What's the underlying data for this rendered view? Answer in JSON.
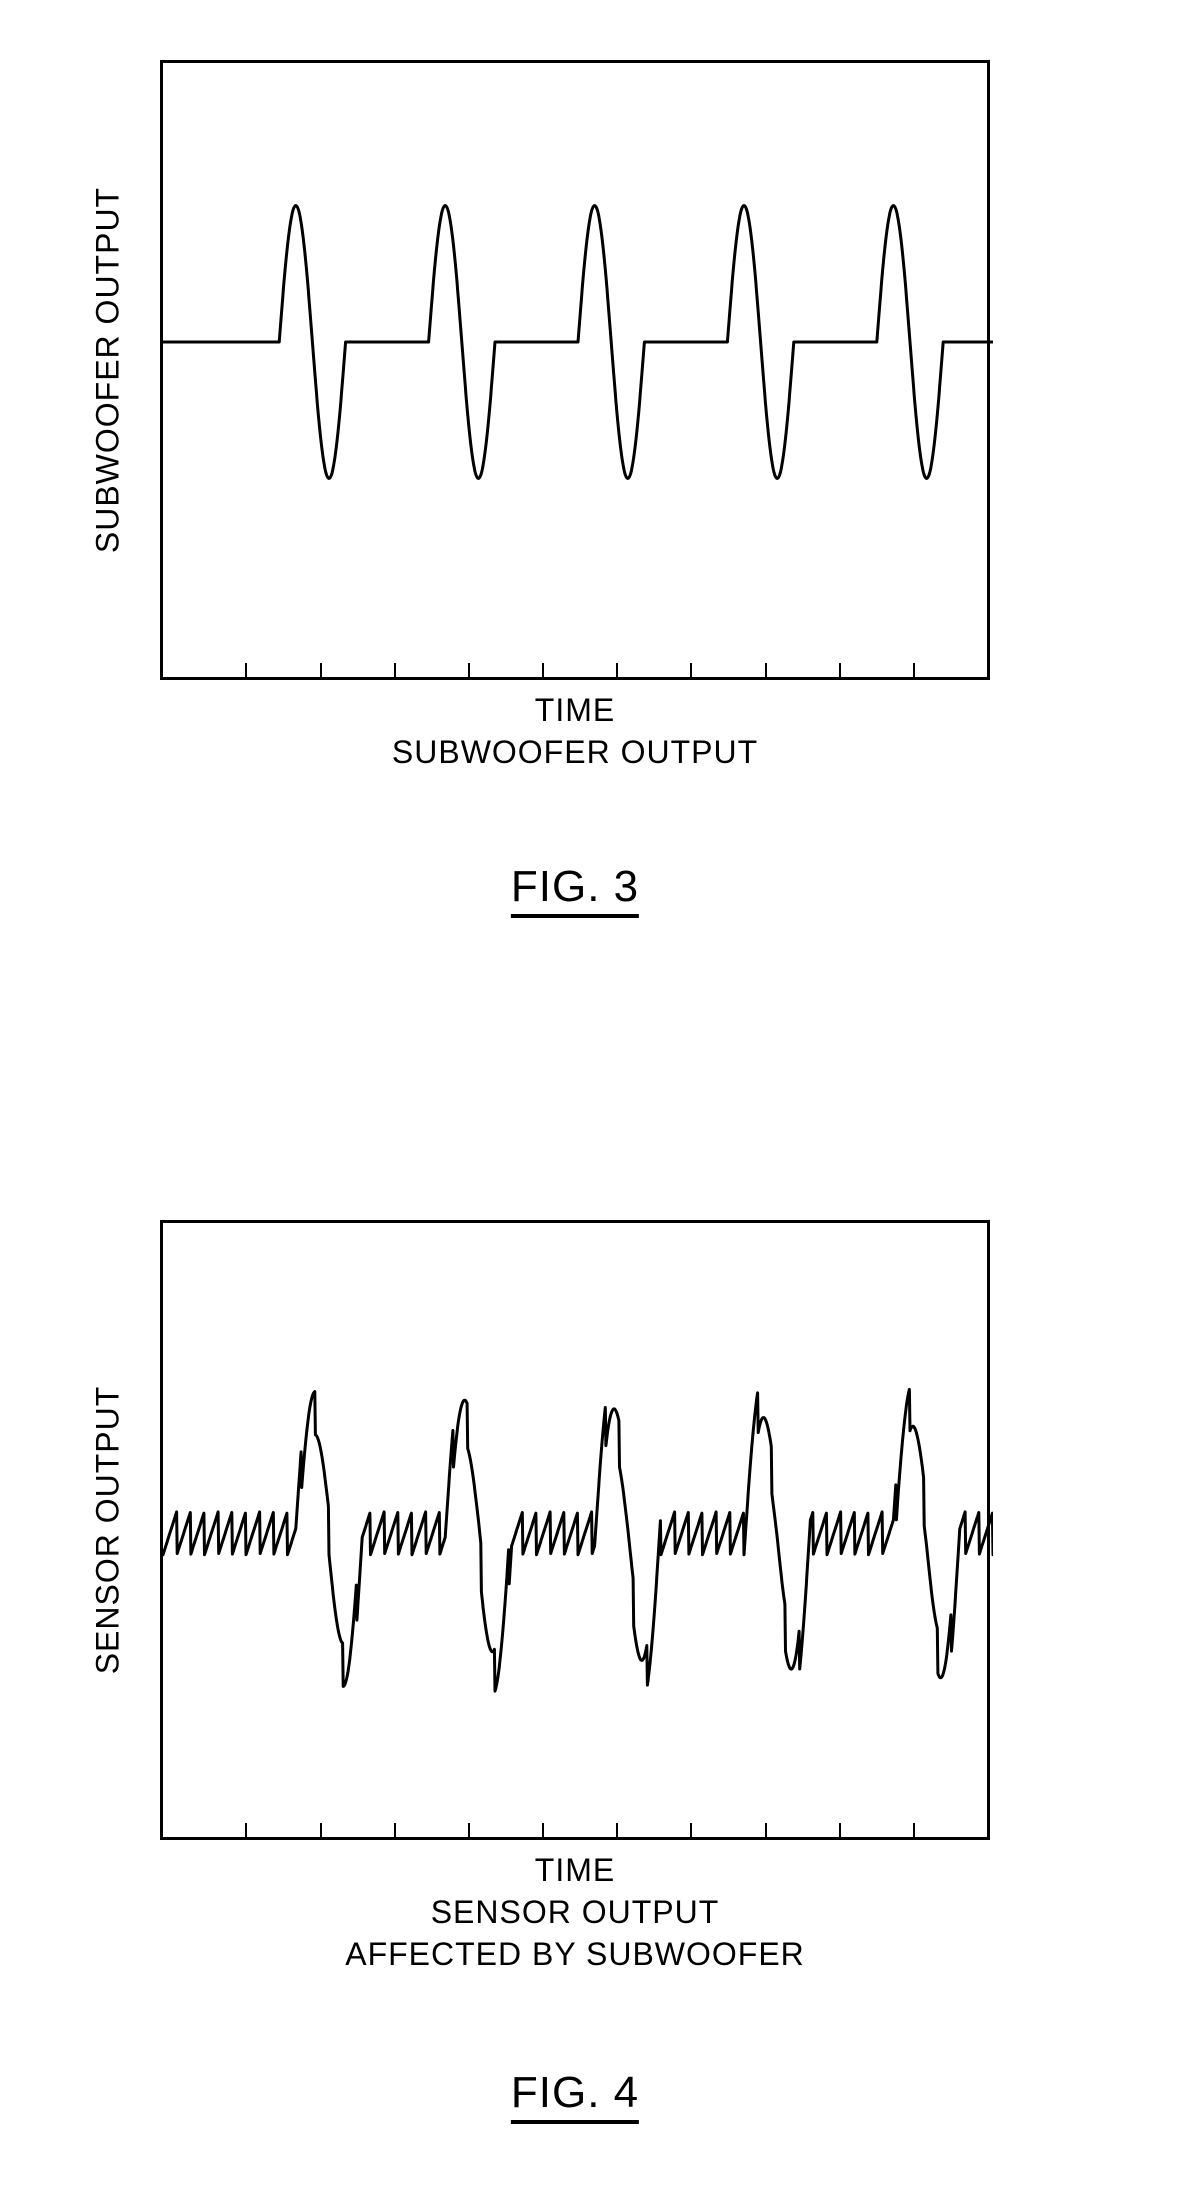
{
  "panel1": {
    "type": "line",
    "ylabel": "SUBWOOFER OUTPUT",
    "xlabel": "TIME",
    "sublabel1": "SUBWOOFER OUTPUT",
    "figlabel": "FIG. 3",
    "stroke_color": "#000000",
    "stroke_width": 3,
    "background_color": "#ffffff",
    "border_color": "#000000",
    "ylim": [
      -1,
      1
    ],
    "baseline_y": 0.45,
    "pulse_amp_up": 0.22,
    "pulse_amp_down": 0.22,
    "n_pulses": 5,
    "pulse_centers": [
      0.16,
      0.34,
      0.52,
      0.7,
      0.88
    ],
    "pulse_half_width": 0.02,
    "tick_positions": [
      0.1,
      0.19,
      0.28,
      0.37,
      0.46,
      0.55,
      0.64,
      0.73,
      0.82,
      0.91
    ],
    "label_fontsize": 32,
    "fig_fontsize": 44,
    "noise_amp": 0
  },
  "panel2": {
    "type": "line",
    "ylabel": "SENSOR OUTPUT",
    "xlabel": "TIME",
    "sublabel1": "SENSOR OUTPUT",
    "sublabel2": "AFFECTED BY SUBWOOFER",
    "figlabel": "FIG. 4",
    "stroke_color": "#000000",
    "stroke_width": 3,
    "background_color": "#ffffff",
    "border_color": "#000000",
    "ylim": [
      -1,
      1
    ],
    "baseline_y": 0.5,
    "pulse_amp_up": 0.2,
    "pulse_amp_down": 0.22,
    "n_pulses": 5,
    "pulse_centers": [
      0.18,
      0.36,
      0.54,
      0.72,
      0.9
    ],
    "pulse_half_width": 0.02,
    "tick_positions": [
      0.1,
      0.19,
      0.28,
      0.37,
      0.46,
      0.55,
      0.64,
      0.73,
      0.82,
      0.91
    ],
    "label_fontsize": 32,
    "fig_fontsize": 44,
    "noise_amp": 0.035,
    "noise_freq": 60
  }
}
